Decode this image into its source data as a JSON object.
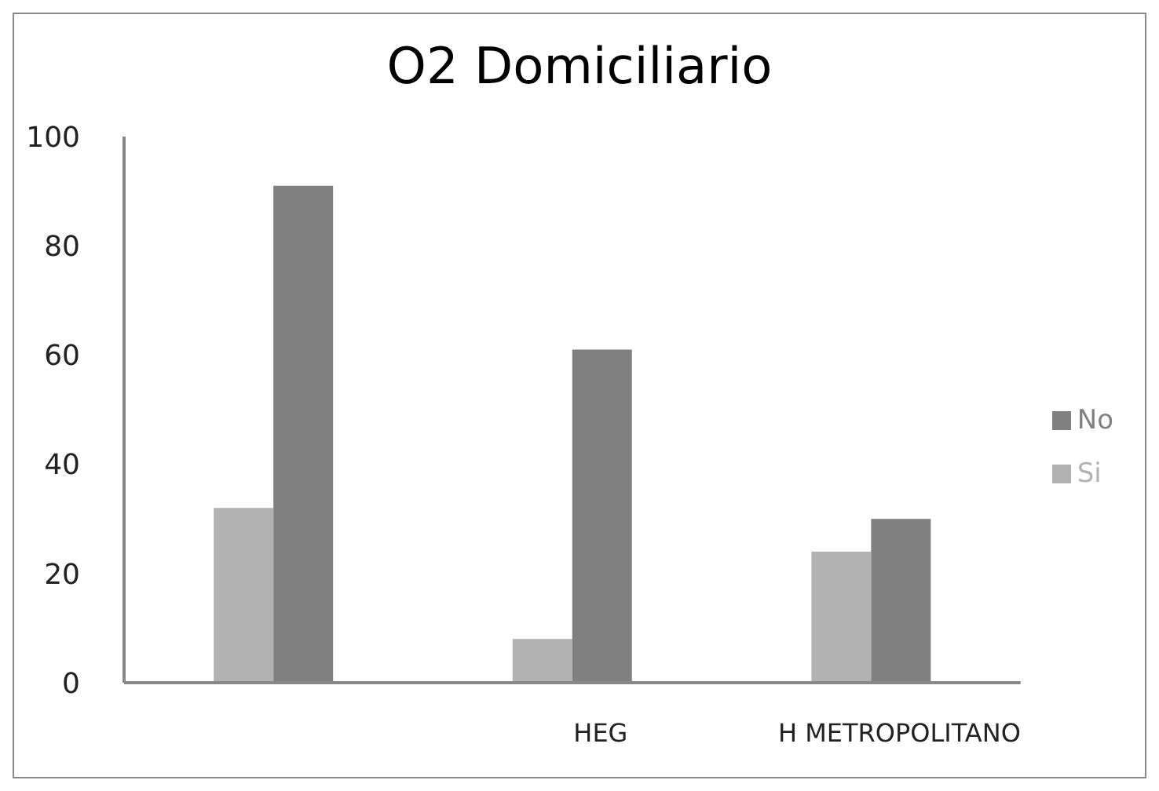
{
  "chart_data": {
    "type": "bar",
    "title": "O2  Domiciliario",
    "categories": [
      null,
      "HEG",
      "H METROPOLITANO"
    ],
    "series": [
      {
        "name": "Si",
        "color": "#b2b2b2",
        "values": [
          32,
          8,
          24
        ]
      },
      {
        "name": "No",
        "color": "#808080",
        "values": [
          91,
          61,
          30
        ]
      }
    ],
    "ylim": [
      0,
      100
    ],
    "yticks": [
      0,
      20,
      40,
      60,
      80,
      100
    ],
    "grid": false,
    "legend": "right"
  }
}
